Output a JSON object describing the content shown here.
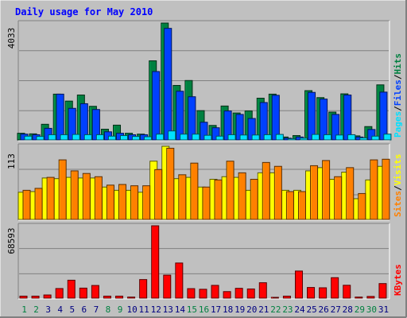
{
  "chart_data": {
    "type": "bar",
    "title": "Daily usage for May 2010",
    "categories": [
      "1",
      "2",
      "3",
      "4",
      "5",
      "6",
      "7",
      "8",
      "9",
      "10",
      "11",
      "12",
      "13",
      "14",
      "15",
      "16",
      "17",
      "18",
      "19",
      "20",
      "21",
      "22",
      "23",
      "24",
      "25",
      "26",
      "27",
      "28",
      "29",
      "30",
      "31"
    ],
    "weekend_days": [
      "1",
      "2",
      "8",
      "9",
      "15",
      "16",
      "22",
      "23",
      "29",
      "30"
    ],
    "panels": [
      {
        "max_label": "4033",
        "ymax": 4033,
        "series": [
          {
            "name": "Hits",
            "color": "#008040",
            "values": [
              230,
              210,
              540,
              1580,
              1340,
              1550,
              1160,
              370,
              510,
              230,
              200,
              2730,
              4033,
              1880,
              2050,
              1010,
              500,
              1170,
              930,
              1000,
              1440,
              1580,
              100,
              150,
              1700,
              1460,
              960,
              1590,
              140,
              460,
              1900
            ]
          },
          {
            "name": "Files",
            "color": "#0040ff",
            "values": [
              200,
              180,
              400,
              1580,
              1090,
              1250,
              1050,
              280,
              230,
              180,
              180,
              2360,
              3850,
              1680,
              1490,
              610,
              420,
              1000,
              880,
              740,
              1290,
              1540,
              60,
              100,
              1640,
              1410,
              880,
              1550,
              100,
              360,
              1650
            ]
          },
          {
            "name": "Pages",
            "color": "#00e0ff",
            "values": [
              130,
              120,
              180,
              180,
              190,
              180,
              180,
              130,
              150,
              120,
              110,
              200,
              310,
              200,
              200,
              160,
              130,
              180,
              170,
              170,
              180,
              190,
              40,
              60,
              190,
              180,
              170,
              180,
              70,
              130,
              200
            ]
          }
        ]
      },
      {
        "max_label": "113",
        "ymax": 113,
        "series": [
          {
            "name": "Visits",
            "color": "#ffff00",
            "values": [
              42,
              43,
              64,
              63,
              65,
              64,
              64,
              50,
              45,
              45,
              42,
              90,
              113,
              63,
              65,
              50,
              62,
              66,
              65,
              45,
              72,
              72,
              45,
              45,
              75,
              80,
              62,
              73,
              32,
              61,
              82
            ]
          },
          {
            "name": "Sites",
            "color": "#ff8000",
            "values": [
              45,
              48,
              65,
              92,
              75,
              71,
              66,
              53,
              54,
              52,
              52,
              77,
              110,
              69,
              87,
              50,
              61,
              90,
              72,
              62,
              88,
              82,
              43,
              43,
              83,
              91,
              66,
              80,
              40,
              92,
              93
            ]
          }
        ]
      },
      {
        "max_label": "68593",
        "ymax": 68593,
        "series": [
          {
            "name": "KBytes",
            "color": "#ff0000",
            "values": [
              1900,
              1900,
              3000,
              9100,
              17000,
              9500,
              12000,
              1900,
              1900,
              1000,
              17600,
              68593,
              21800,
              33300,
              9000,
              8400,
              12100,
              6200,
              9300,
              8700,
              14600,
              480,
              1900,
              25700,
              10100,
              9800,
              19400,
              12200,
              1000,
              1600,
              13800
            ]
          }
        ]
      }
    ],
    "legend": {
      "panel1": [
        "Pages",
        "Files",
        "Hits"
      ],
      "panel2": [
        "Sites",
        "Visits"
      ],
      "panel3": [
        "KBytes"
      ]
    },
    "separator": "/",
    "colors": {
      "background": "#c0c0c0",
      "title": "#0000ff",
      "weekday_label": "#000080",
      "weekend_label": "#008040",
      "grid": "#808080"
    }
  }
}
